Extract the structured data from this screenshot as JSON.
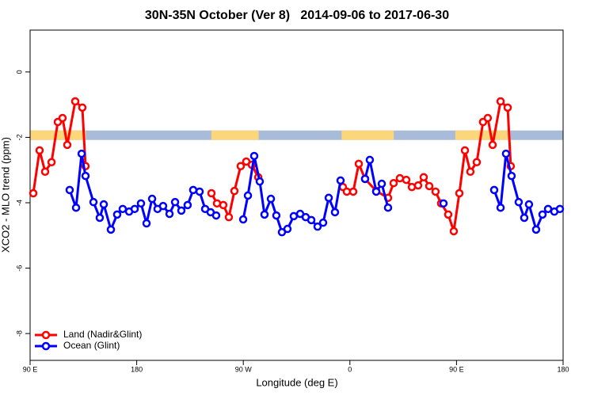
{
  "chart_data": {
    "type": "line",
    "title": "30N-35N October (Ver 8)   2014-09-06 to 2017-06-30",
    "x_label": "Longitude (deg E)",
    "y_label": "XCO2 - MLO trend (ppm)",
    "xlim": [
      90,
      540
    ],
    "ylim": [
      -8.82,
      1.28
    ],
    "xticks": [
      {
        "value": 90,
        "label": "90 E"
      },
      {
        "value": 180,
        "label": "180"
      },
      {
        "value": 270,
        "label": "90 W"
      },
      {
        "value": 360,
        "label": "0"
      },
      {
        "value": 450,
        "label": "90 E"
      },
      {
        "value": 540,
        "label": "180"
      }
    ],
    "yticks": [
      0,
      -2,
      -4,
      -6,
      -8
    ],
    "legend": "bottom-left",
    "band": {
      "ylim": [
        -2.08,
        -1.79
      ],
      "ocean_color": "#a8bcd9",
      "land_color": "#fcd67a",
      "land": [
        [
          90,
          137
        ],
        [
          243,
          283
        ],
        [
          353,
          397
        ],
        [
          449,
          494
        ]
      ]
    },
    "series": [
      {
        "name": "Land (Nadir&Glint)",
        "color": "#ff0000",
        "x": [
          92.7,
          98.0,
          102.7,
          108.1,
          113.4,
          117.4,
          121.4,
          128.1,
          134.1,
          136.8,
          null,
          243.1,
          247.8,
          253.1,
          257.8,
          262.5,
          267.8,
          272.5,
          277.2,
          282.6,
          null,
          354.1,
          357.4,
          362.8,
          367.5,
          372.8,
          382.2,
          392.2,
          396.9,
          402.2,
          407.6,
          412.3,
          417.6,
          422.3,
          427.0,
          432.3,
          437.0,
          443.0,
          447.7,
          452.4,
          457.1,
          461.7,
          467.1,
          472.4,
          476.4,
          480.5,
          487.2,
          493.2,
          495.8
        ],
        "values": [
          -3.71,
          -2.4,
          -3.05,
          -2.76,
          -1.53,
          -1.41,
          -2.23,
          -0.9,
          -1.09,
          -2.88,
          null,
          -3.71,
          -4.02,
          -4.07,
          -4.44,
          -3.64,
          -2.88,
          -2.74,
          -2.84,
          -3.22,
          null,
          -3.52,
          -3.66,
          -3.66,
          -2.81,
          -3.27,
          -3.64,
          -3.85,
          -3.4,
          -3.25,
          -3.3,
          -3.52,
          -3.47,
          -3.22,
          -3.49,
          -3.66,
          -4.02,
          -4.36,
          -4.87,
          -3.71,
          -2.4,
          -3.05,
          -2.76,
          -1.53,
          -1.41,
          -2.23,
          -0.9,
          -1.09,
          -2.88
        ]
      },
      {
        "name": "Ocean (Glint)",
        "color": "#0000ff",
        "x": [
          123.4,
          128.8,
          133.5,
          136.8,
          143.5,
          148.8,
          152.2,
          158.2,
          163.5,
          168.2,
          173.6,
          178.3,
          183.6,
          188.3,
          193.0,
          197.6,
          202.3,
          207.7,
          212.4,
          217.7,
          223.0,
          227.7,
          233.1,
          237.8,
          242.4,
          247.1,
          null,
          269.9,
          273.9,
          279.2,
          283.9,
          287.9,
          293.3,
          297.9,
          302.6,
          307.3,
          312.6,
          318.0,
          322.7,
          327.4,
          332.7,
          337.4,
          342.1,
          347.4,
          352.1,
          null,
          372.8,
          376.8,
          382.2,
          386.9,
          392.2,
          null,
          439.0,
          null,
          481.8,
          487.2,
          491.8,
          496.5,
          502.5,
          507.2,
          511.2,
          517.2,
          522.6,
          527.3,
          532.6,
          537.3
        ],
        "values": [
          -3.61,
          -4.15,
          -2.5,
          -3.18,
          -3.98,
          -4.46,
          -4.05,
          -4.82,
          -4.36,
          -4.19,
          -4.27,
          -4.19,
          -4.02,
          -4.63,
          -3.88,
          -4.19,
          -4.1,
          -4.34,
          -3.98,
          -4.24,
          -4.07,
          -3.61,
          -3.66,
          -4.19,
          -4.29,
          -4.39,
          null,
          -4.51,
          -3.78,
          -2.57,
          -3.35,
          -4.36,
          -3.88,
          -4.39,
          -4.9,
          -4.8,
          -4.41,
          -4.34,
          -4.44,
          -4.53,
          -4.73,
          -4.61,
          -3.85,
          -4.29,
          -3.32,
          null,
          -3.27,
          -2.69,
          -3.66,
          -3.42,
          -4.15,
          null,
          -4.02,
          null,
          -3.61,
          -4.15,
          -2.5,
          -3.18,
          -3.98,
          -4.46,
          -4.05,
          -4.82,
          -4.36,
          -4.19,
          -4.27,
          -4.19
        ]
      }
    ]
  }
}
